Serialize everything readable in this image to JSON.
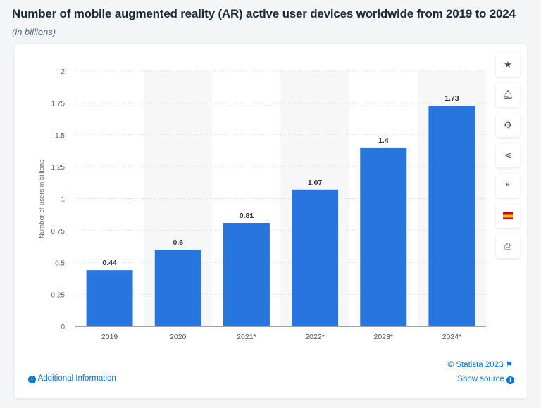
{
  "header": {
    "title": "Number of mobile augmented reality (AR) active user devices worldwide from 2019 to 2024",
    "subtitle": "(in billions)"
  },
  "sidebar": {
    "icons": [
      "star-icon",
      "bell-icon",
      "gear-icon",
      "share-icon",
      "quote-icon",
      "spain-flag-icon",
      "print-icon"
    ]
  },
  "footer": {
    "copyright": "© Statista 2023",
    "additional_info": "Additional Information",
    "show_source": "Show source"
  },
  "colors": {
    "bar": "#2876dd",
    "band": "#f7f7f7",
    "link": "#0f74d6"
  },
  "chart_data": {
    "type": "bar",
    "categories": [
      "2019",
      "2020",
      "2021*",
      "2022*",
      "2023*",
      "2024*"
    ],
    "values": [
      0.44,
      0.6,
      0.81,
      1.07,
      1.4,
      1.73
    ],
    "ylabel": "Number of users in billions",
    "ylim": [
      0,
      2
    ],
    "yticks": [
      0,
      0.25,
      0.5,
      0.75,
      1,
      1.25,
      1.5,
      1.75,
      2
    ],
    "ytick_labels": [
      "0",
      "0.25",
      "0.5",
      "0.75",
      "1",
      "1.25",
      "1.5",
      "1.75",
      "2"
    ],
    "grid": true
  }
}
